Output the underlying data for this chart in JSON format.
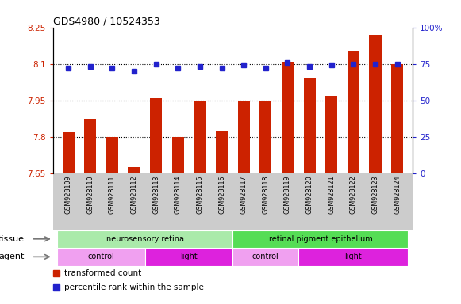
{
  "title": "GDS4980 / 10524353",
  "samples": [
    "GSM928109",
    "GSM928110",
    "GSM928111",
    "GSM928112",
    "GSM928113",
    "GSM928114",
    "GSM928115",
    "GSM928116",
    "GSM928117",
    "GSM928118",
    "GSM928119",
    "GSM928120",
    "GSM928121",
    "GSM928122",
    "GSM928123",
    "GSM928124"
  ],
  "transformed_count": [
    7.82,
    7.875,
    7.8,
    7.675,
    7.96,
    7.8,
    7.945,
    7.825,
    7.95,
    7.945,
    8.11,
    8.045,
    7.97,
    8.155,
    8.22,
    8.1
  ],
  "percentile_rank": [
    72,
    73,
    72,
    70,
    75,
    72,
    73,
    72,
    74,
    72,
    76,
    73,
    74,
    75,
    75,
    75
  ],
  "ylim_left": [
    7.65,
    8.25
  ],
  "ylim_right": [
    0,
    100
  ],
  "yticks_left": [
    7.65,
    7.8,
    7.95,
    8.1,
    8.25
  ],
  "yticks_right": [
    0,
    25,
    50,
    75,
    100
  ],
  "ytick_labels_left": [
    "7.65",
    "7.8",
    "7.95",
    "8.1",
    "8.25"
  ],
  "ytick_labels_right": [
    "0",
    "25",
    "50",
    "75",
    "100%"
  ],
  "hlines": [
    7.8,
    7.95,
    8.1
  ],
  "bar_color": "#cc2200",
  "dot_color": "#2222cc",
  "tissue_groups": [
    {
      "label": "neurosensory retina",
      "start": 0,
      "end": 7
    },
    {
      "label": "retinal pigment epithelium",
      "start": 8,
      "end": 15
    }
  ],
  "agent_groups": [
    {
      "label": "control",
      "start": 0,
      "end": 3,
      "type": "control"
    },
    {
      "label": "light",
      "start": 4,
      "end": 7,
      "type": "light"
    },
    {
      "label": "control",
      "start": 8,
      "end": 10,
      "type": "control"
    },
    {
      "label": "light",
      "start": 11,
      "end": 15,
      "type": "light"
    }
  ],
  "tissue_color_light": "#aaeaaa",
  "tissue_color_dark": "#55dd55",
  "agent_color_control": "#f0a0f0",
  "agent_color_light": "#dd22dd",
  "tissue_label": "tissue",
  "agent_label": "agent",
  "legend_bar_label": "transformed count",
  "legend_dot_label": "percentile rank within the sample",
  "xtick_bg_color": "#cccccc",
  "plot_bg": "#ffffff"
}
